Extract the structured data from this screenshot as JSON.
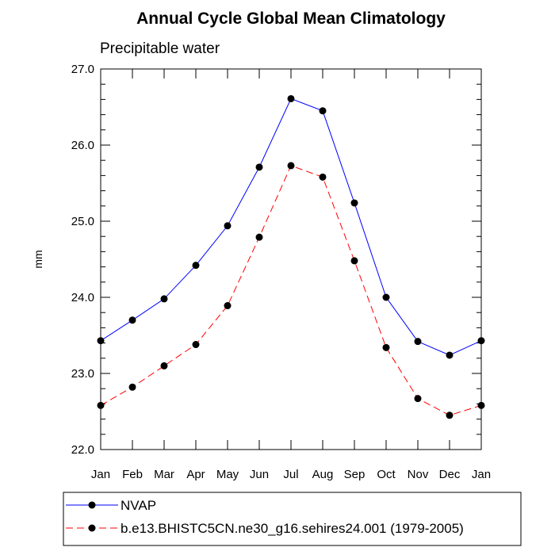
{
  "chart_data": {
    "type": "line",
    "title": "Annual Cycle Global Mean Climatology",
    "subtitle": "Precipitable water",
    "xlabel": "",
    "ylabel": "mm",
    "categories": [
      "Jan",
      "Feb",
      "Mar",
      "Apr",
      "May",
      "Jun",
      "Jul",
      "Aug",
      "Sep",
      "Oct",
      "Nov",
      "Dec",
      "Jan"
    ],
    "ylim": [
      22.0,
      27.0
    ],
    "yticks": [
      "22.0",
      "23.0",
      "24.0",
      "25.0",
      "26.0",
      "27.0"
    ],
    "grid": false,
    "legend_position": "bottom",
    "series": [
      {
        "name": "NVAP",
        "color": "#0000ff",
        "line_style": "solid",
        "marker": "filled-circle",
        "values": [
          23.43,
          23.7,
          23.98,
          24.42,
          24.94,
          25.71,
          26.61,
          26.45,
          25.24,
          24.0,
          23.42,
          23.24,
          23.43
        ]
      },
      {
        "name": "b.e13.BHISTC5CN.ne30_g16.sehires24.001 (1979-2005)",
        "color": "#ff0000",
        "line_style": "dashed",
        "marker": "filled-circle",
        "values": [
          22.58,
          22.82,
          23.1,
          23.38,
          23.89,
          24.79,
          25.73,
          25.58,
          24.48,
          23.34,
          22.67,
          22.45,
          22.58
        ]
      }
    ]
  }
}
